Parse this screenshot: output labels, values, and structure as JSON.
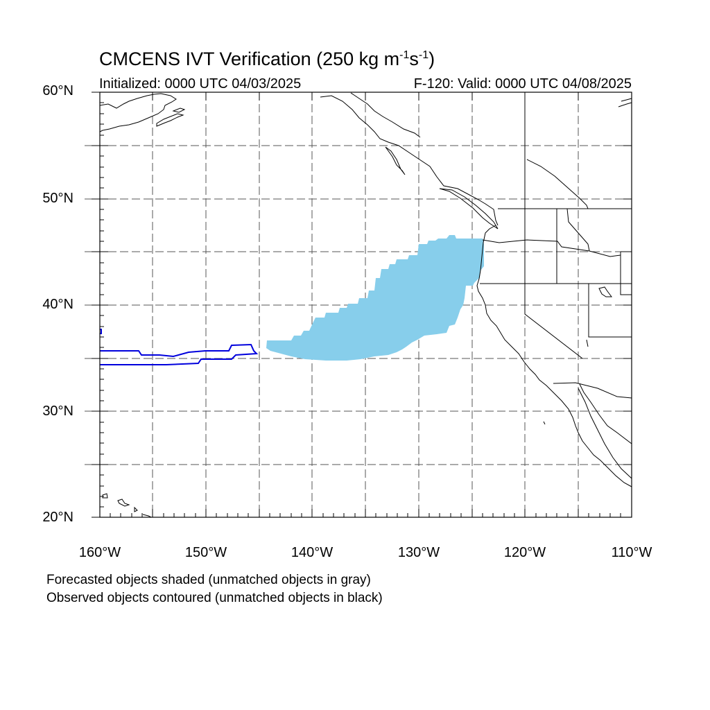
{
  "header": {
    "title_prefix": "CMCENS IVT Verification (250 kg m",
    "title_exp1": "-1",
    "title_mid": "s",
    "title_exp2": "-1",
    "title_suffix": ")",
    "initialized": "Initialized: 0000 UTC 04/03/2025",
    "valid": "F-120: Valid: 0000 UTC 04/08/2025"
  },
  "axes": {
    "y_labels": [
      "60°N",
      "50°N",
      "40°N",
      "30°N",
      "20°N"
    ],
    "x_labels": [
      "160°W",
      "150°W",
      "140°W",
      "130°W",
      "120°W",
      "110°W"
    ],
    "lat_range": [
      20,
      60
    ],
    "lon_range": [
      -160,
      -110
    ],
    "grid_style": "dashed",
    "grid_step_deg": 5
  },
  "legend": {
    "line1": "Forecasted objects shaded (unmatched objects in gray)",
    "line2": "Observed objects contoured (unmatched objects in black)"
  },
  "colors": {
    "forecast_fill": "#87ceeb",
    "observed_contour": "#0000dd",
    "coastline": "#000000",
    "grid": "#555555"
  }
}
